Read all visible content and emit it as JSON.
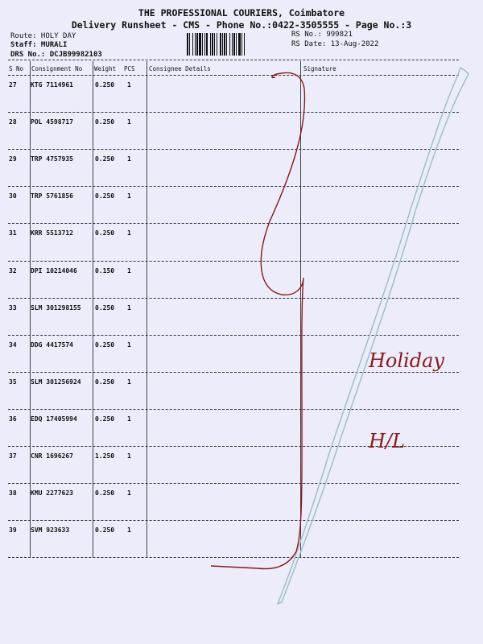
{
  "header": {
    "company": "THE PROFESSIONAL COURIERS, Coimbatore",
    "subtitle": "Delivery Runsheet - CMS - Phone No.:0422-3505555 - Page No.:3",
    "route": "Route: HOLY DAY",
    "staff": "Staff: MURALI",
    "drs_no": "DRS No.: DCJB99982103",
    "rs_no": "RS No.: 999821",
    "rs_date": "RS Date: 13-Aug-2022"
  },
  "table": {
    "columns": [
      "S No",
      "Consignment No",
      "Weight",
      "PCS",
      "Consignee Details",
      "Signature"
    ],
    "rows": [
      {
        "sno": "27",
        "consignment": "KTG 7114961",
        "weight": "0.250",
        "pcs": "1"
      },
      {
        "sno": "28",
        "consignment": "POL 4598717",
        "weight": "0.250",
        "pcs": "1"
      },
      {
        "sno": "29",
        "consignment": "TRP 4757935",
        "weight": "0.250",
        "pcs": "1"
      },
      {
        "sno": "30",
        "consignment": "TRP 5761856",
        "weight": "0.250",
        "pcs": "1"
      },
      {
        "sno": "31",
        "consignment": "KRR 5513712",
        "weight": "0.250",
        "pcs": "1"
      },
      {
        "sno": "32",
        "consignment": "DPI 10214046",
        "weight": "0.150",
        "pcs": "1"
      },
      {
        "sno": "33",
        "consignment": "SLM 301298155",
        "weight": "0.250",
        "pcs": "1"
      },
      {
        "sno": "34",
        "consignment": "DDG 4417574",
        "weight": "0.250",
        "pcs": "1"
      },
      {
        "sno": "35",
        "consignment": "SLM 301256924",
        "weight": "0.250",
        "pcs": "1"
      },
      {
        "sno": "36",
        "consignment": "EDQ 17405994",
        "weight": "0.250",
        "pcs": "1"
      },
      {
        "sno": "37",
        "consignment": "CNR 1696267",
        "weight": "1.250",
        "pcs": "1"
      },
      {
        "sno": "38",
        "consignment": "KMU 2277623",
        "weight": "0.250",
        "pcs": "1"
      },
      {
        "sno": "39",
        "consignment": "SVM 923633",
        "weight": "0.250",
        "pcs": "1"
      }
    ]
  },
  "signature_handwriting": "Holiday H/L",
  "colors": {
    "paper": "#ececfa",
    "ink_red": "#8b1a1a",
    "ink_blue": "#9fc0c8"
  }
}
